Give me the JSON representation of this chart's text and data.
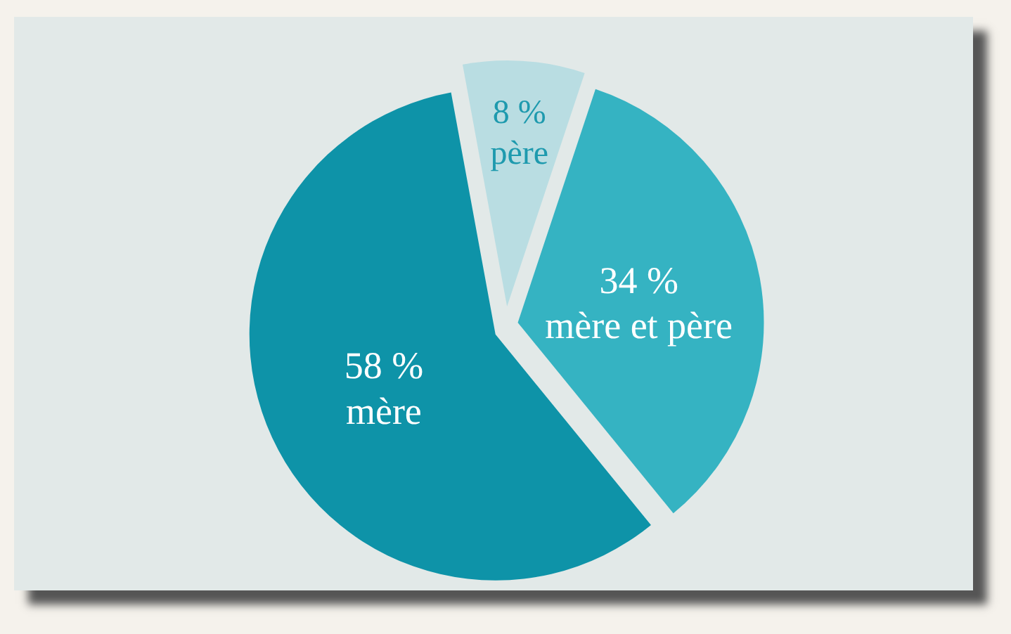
{
  "chart_data": {
    "type": "pie",
    "categories": [
      "mère",
      "père",
      "mère et père"
    ],
    "values": [
      58,
      8,
      34
    ],
    "colors": [
      "#0e93a8",
      "#b9dde2",
      "#35b3c2"
    ],
    "value_labels": [
      "58 %",
      "8 %",
      "34 %"
    ]
  }
}
